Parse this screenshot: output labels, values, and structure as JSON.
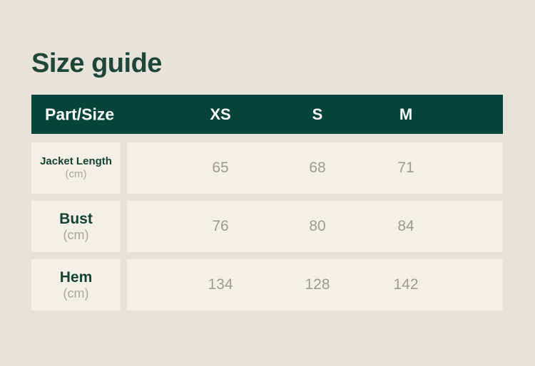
{
  "page": {
    "title": "Size guide"
  },
  "table": {
    "header": {
      "label": "Part/Size",
      "sizes": [
        "XS",
        "S",
        "M"
      ]
    },
    "rows": [
      {
        "part": "Jacket Length",
        "unit": "(cm)",
        "values": [
          "65",
          "68",
          "71"
        ]
      },
      {
        "part": "Bust",
        "unit": "(cm)",
        "values": [
          "76",
          "80",
          "84"
        ]
      },
      {
        "part": "Hem",
        "unit": "(cm)",
        "values": [
          "134",
          "128",
          "142"
        ]
      }
    ]
  },
  "colors": {
    "page_background": "#e7e3da",
    "header_background": "#05443a",
    "header_text": "#fdfdfc",
    "cell_background": "#f5f0e5",
    "title_text": "#1e4538",
    "part_text": "#144334",
    "unit_text": "#a8a69f",
    "value_text": "#9d9b96"
  }
}
